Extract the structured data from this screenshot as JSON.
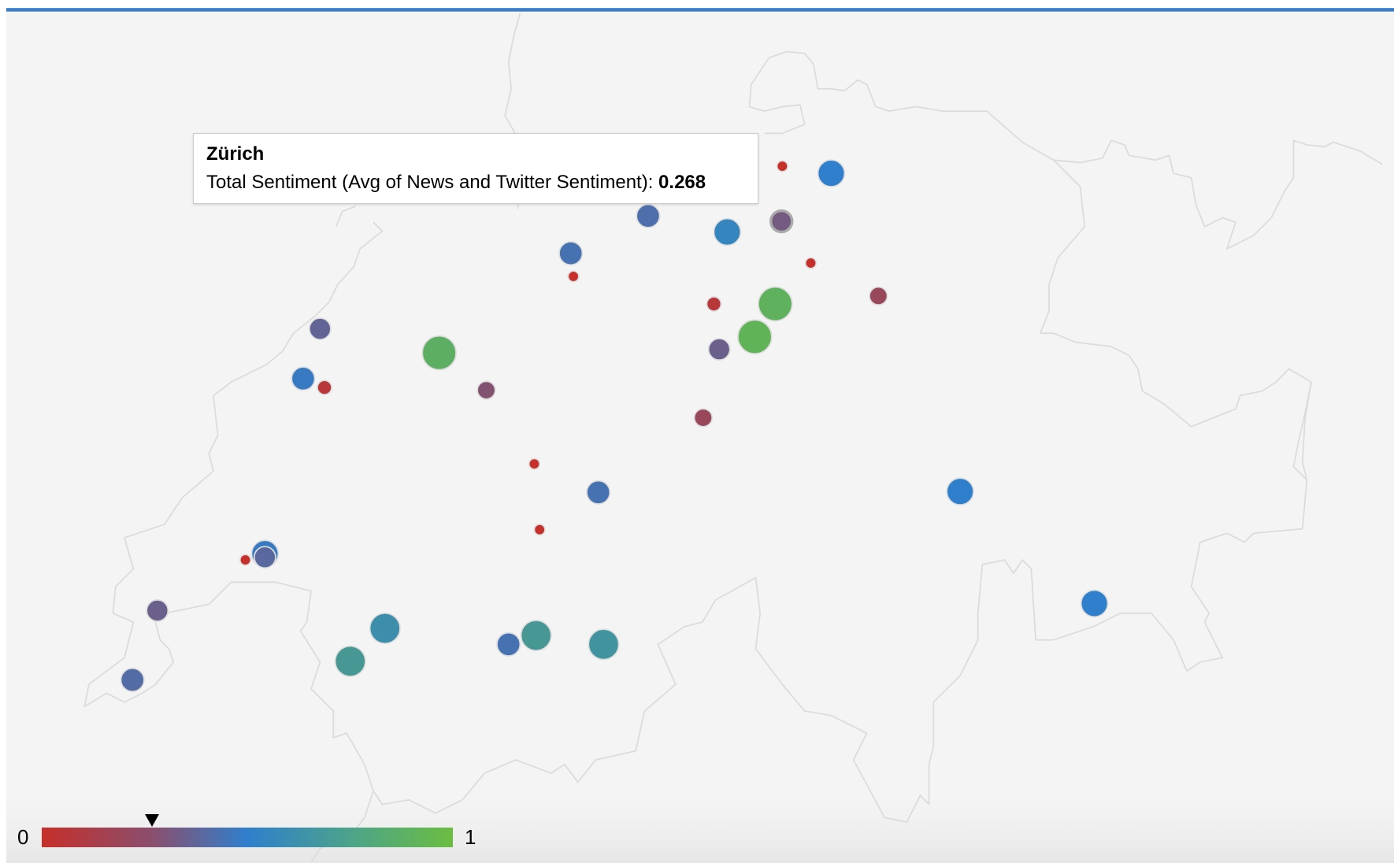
{
  "tooltip": {
    "city": "Zürich",
    "metric_label": "Total Sentiment (Avg of News and Twitter Sentiment): ",
    "value": "0.268"
  },
  "legend": {
    "min_label": "0",
    "max_label": "1",
    "marker_value": 0.268,
    "colors": [
      "#c62f2a",
      "#2f7fcc",
      "#6bbd41"
    ]
  },
  "colors": {
    "accent_bar": "#3a7dc8",
    "background": "#f5f5f5",
    "border": "#dcdcdc"
  },
  "markers": [
    {
      "sentiment": 0.0
    },
    {
      "sentiment": 0.5
    },
    {
      "sentiment": 0.4
    },
    {
      "sentiment": 0.55
    },
    {
      "sentiment": 0.268,
      "city": "Zürich",
      "hovered": true
    },
    {
      "sentiment": 0.42
    },
    {
      "sentiment": 0.0
    },
    {
      "sentiment": 0.0
    },
    {
      "sentiment": 0.15
    },
    {
      "sentiment": 0.05
    },
    {
      "sentiment": 0.9
    },
    {
      "sentiment": 0.92
    },
    {
      "sentiment": 0.3
    },
    {
      "sentiment": 0.33
    },
    {
      "sentiment": 0.88
    },
    {
      "sentiment": 0.47
    },
    {
      "sentiment": 0.05
    },
    {
      "sentiment": 0.22
    },
    {
      "sentiment": 0.15
    },
    {
      "sentiment": 0.0
    },
    {
      "sentiment": 0.42
    },
    {
      "sentiment": 0.5
    },
    {
      "sentiment": 0.0
    },
    {
      "sentiment": 0.47
    },
    {
      "sentiment": 0.36
    },
    {
      "sentiment": 0.0
    },
    {
      "sentiment": 0.3
    },
    {
      "sentiment": 0.62
    },
    {
      "sentiment": 0.7
    },
    {
      "sentiment": 0.42
    },
    {
      "sentiment": 0.7
    },
    {
      "sentiment": 0.66
    },
    {
      "sentiment": 0.38
    },
    {
      "sentiment": 0.5
    }
  ]
}
